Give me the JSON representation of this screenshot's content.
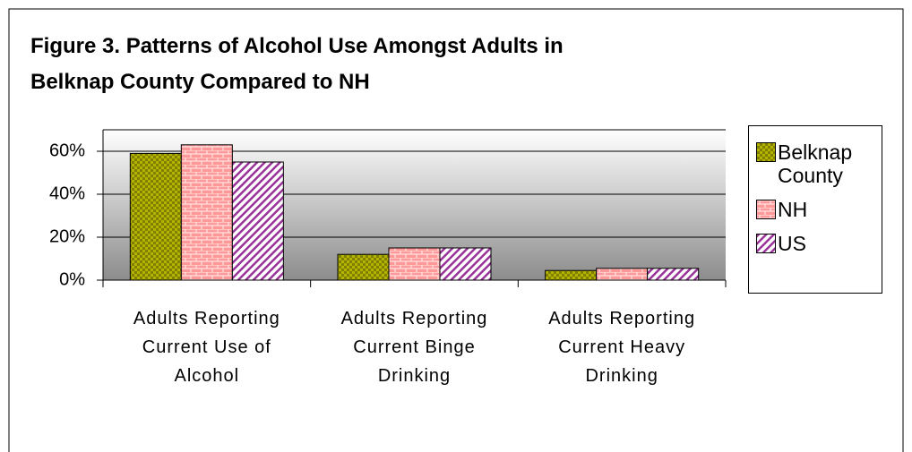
{
  "chart_data": {
    "type": "bar",
    "title": [
      "Figure 3.  Patterns of Alcohol Use Amongst Adults in",
      "Belknap County Compared to NH"
    ],
    "categories": [
      "Adults Reporting Current Use of Alcohol",
      "Adults Reporting Current Binge Drinking",
      "Adults Reporting Current Heavy Drinking"
    ],
    "series": [
      {
        "name": "Belknap County",
        "color": "#808000",
        "values": [
          59,
          12,
          4.5
        ]
      },
      {
        "name": "NH",
        "color": "#ff9999",
        "values": [
          63,
          15,
          5.5
        ]
      },
      {
        "name": "US",
        "color": "#993399",
        "values": [
          55,
          15,
          5.5
        ]
      }
    ],
    "ylim": [
      0,
      70
    ],
    "yticks": [
      {
        "value": 0,
        "label": "0%"
      },
      {
        "value": 20,
        "label": "20%"
      },
      {
        "value": 40,
        "label": "40%"
      },
      {
        "value": 60,
        "label": "60%"
      }
    ],
    "grid": true,
    "legend": "right"
  }
}
